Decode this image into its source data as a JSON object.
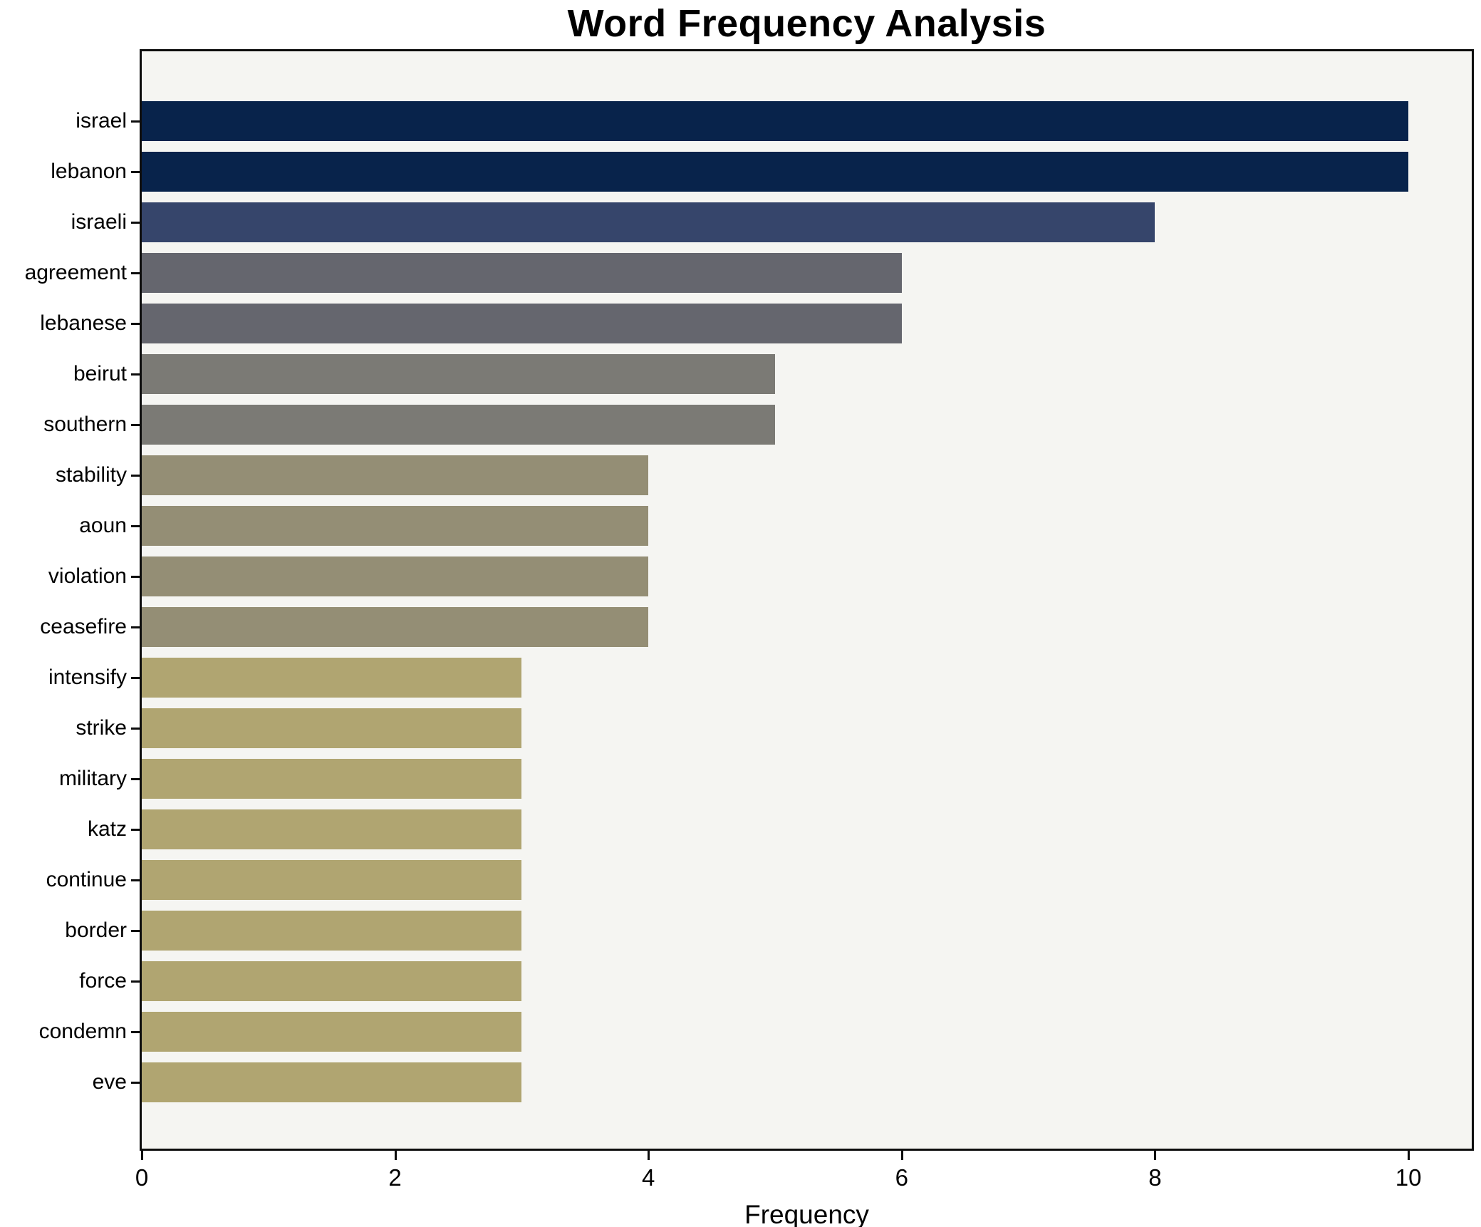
{
  "title": "Word Frequency Analysis",
  "chart_data": {
    "type": "bar",
    "orientation": "horizontal",
    "title": "Word Frequency Analysis",
    "xlabel": "Frequency",
    "ylabel": "",
    "categories": [
      "israel",
      "lebanon",
      "israeli",
      "agreement",
      "lebanese",
      "beirut",
      "southern",
      "stability",
      "aoun",
      "violation",
      "ceasefire",
      "intensify",
      "strike",
      "military",
      "katz",
      "continue",
      "border",
      "force",
      "condemn",
      "eve"
    ],
    "values": [
      10,
      10,
      8,
      6,
      6,
      5,
      5,
      4,
      4,
      4,
      4,
      3,
      3,
      3,
      3,
      3,
      3,
      3,
      3,
      3
    ],
    "bar_colors": [
      "#08234b",
      "#08234b",
      "#36456b",
      "#65666e",
      "#65666e",
      "#7b7a75",
      "#7b7a75",
      "#948e75",
      "#948e75",
      "#948e75",
      "#948e75",
      "#b0a571",
      "#b0a571",
      "#b0a571",
      "#b0a571",
      "#b0a571",
      "#b0a571",
      "#b0a571",
      "#b0a571",
      "#b0a571"
    ],
    "xticks": [
      0,
      2,
      4,
      6,
      8,
      10
    ],
    "xlim": [
      0,
      10.5
    ],
    "grid": false,
    "legend": "none",
    "colormap": "cividis",
    "plot_background": "#f5f5f2",
    "figure_background": "#ffffff",
    "spine_color": "#0d0d0d"
  }
}
